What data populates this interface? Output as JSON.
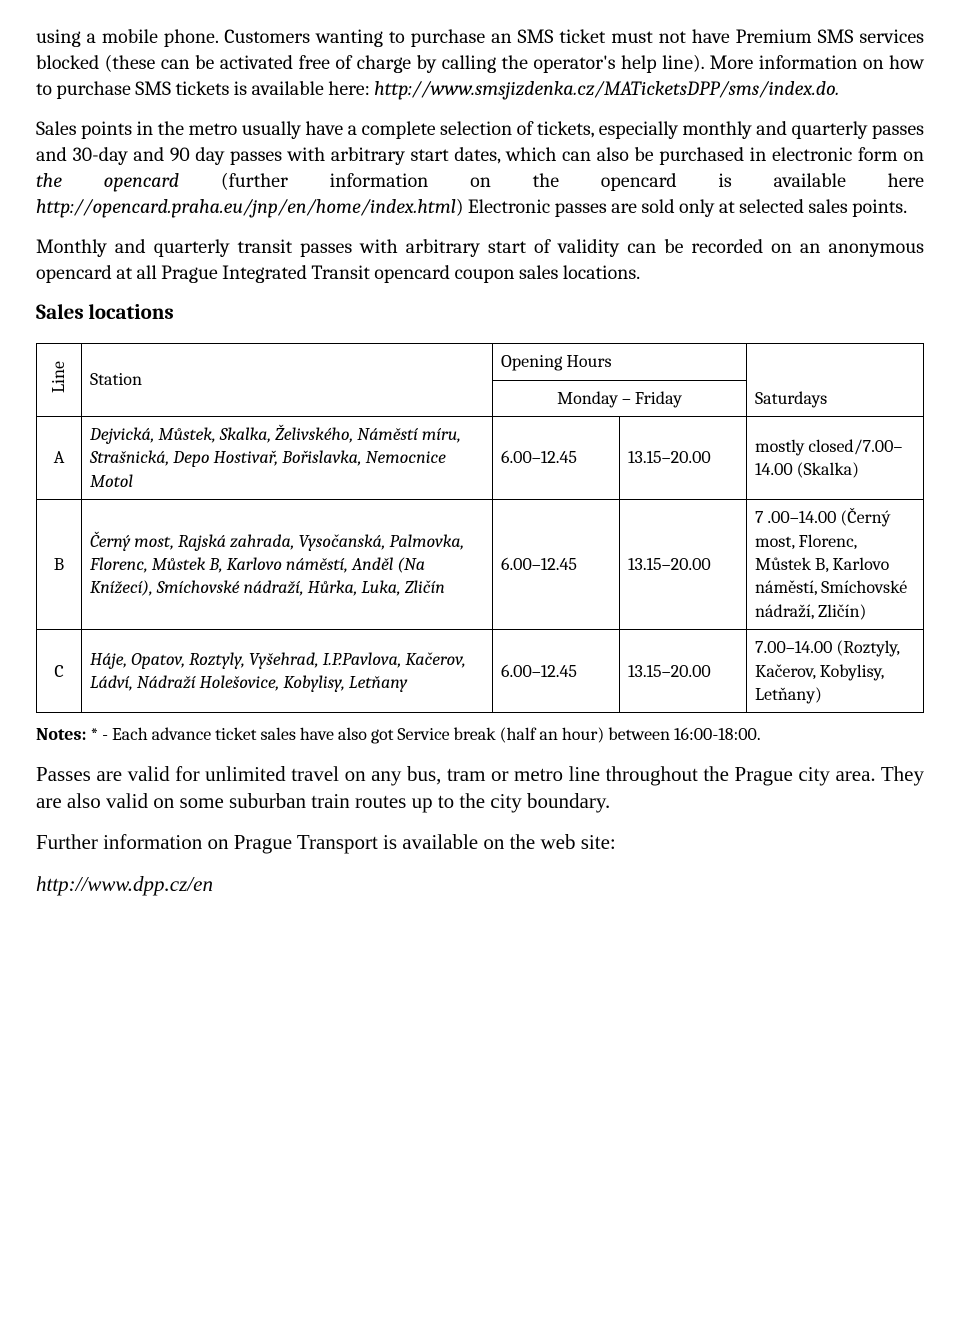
{
  "para1_a": "using a mobile phone. Customers wanting to purchase an SMS ticket must not have Premium SMS services blocked (these can be activated free of charge by calling the operator's help line). More information on how to purchase SMS tickets is available here: ",
  "para1_link": "http://www.smsjizdenka.cz/MATicketsDPP/sms/index.do.",
  "para2_a": "Sales points in the metro usually have a complete selection of tickets, especially monthly  and quarterly passes and 30-day and 90 day passes with arbitrary start dates, which can also be purchased in electronic form on ",
  "para2_b": "the opencard",
  "para2_c": " (further information on the opencard is available here ",
  "para2_d": "http://opencard.praha.eu/jnp/en/home/index.html",
  "para2_e": ") Electronic passes are sold only at selected sales points.",
  "para3": "Monthly and quarterly transit passes with arbitrary start of validity can be recorded on an anonymous opencard at all Prague Integrated Transit opencard coupon sales locations.",
  "heading": "Sales locations",
  "table": {
    "headers": {
      "line": "Line",
      "station": "Station",
      "opening": "Opening Hours",
      "mf": "Monday – Friday",
      "sat": "Saturdays"
    },
    "rows": [
      {
        "line": "A",
        "station": "Dejvická, Můstek, Skalka, Želivského, Náměstí míru, Strašnická, Depo Hostivař, Bořislavka, Nemocnice Motol",
        "h1": "6.00–12.45",
        "h2": "13.15–20.00",
        "sat": "mostly closed/7.00–14.00 (Skalka)"
      },
      {
        "line": "B",
        "station": "Černý most, Rajská zahrada, Vysočanská, Palmovka, Florenc, Můstek B, Karlovo náměstí, Anděl (Na Knížecí), Smíchovské nádraží, Hůrka, Luka, Zličín",
        "h1": "6.00–12.45",
        "h2": "13.15–20.00",
        "sat": "7 .00–14.00 (Černý most, Florenc, Můstek B, Karlovo náměstí, Smíchovské nádraží, Zličín)"
      },
      {
        "line": "C",
        "station": "Háje, Opatov, Roztyly, Vyšehrad, I.P.Pavlova, Kačerov, Ládví, Nádraží Holešovice, Kobylisy, Letňany",
        "h1": "6.00–12.45",
        "h2": "13.15–20.00",
        "sat": "7.00–14.00 (Roztyly, Kačerov, Kobylisy, Letňany)"
      }
    ]
  },
  "notes_label": "Notes: ",
  "notes_text": "* - Each advance ticket sales have also got Service break (half an hour) between 16:00-18:00.",
  "para4": "Passes are valid for unlimited travel on any bus, tram or metro line throughout the Prague city area. They are also valid on some suburban train routes up to the city boundary.",
  "para5": "Further information on Prague Transport is available on the web site:",
  "para6": "http://www.dpp.cz/en"
}
